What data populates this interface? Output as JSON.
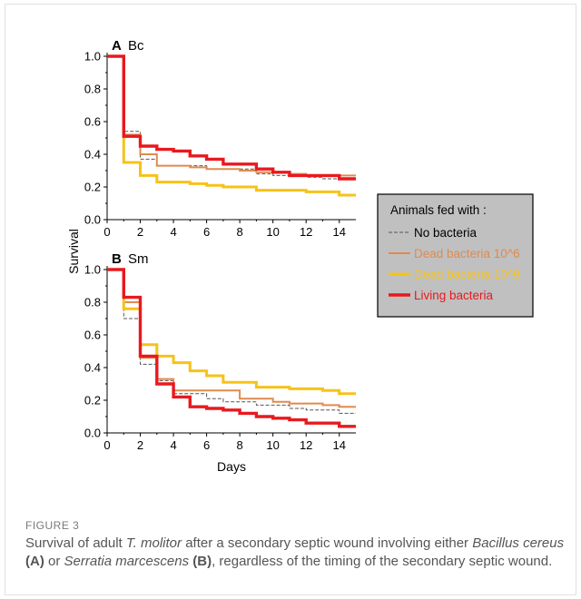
{
  "figure": {
    "label": "FIGURE 3",
    "caption": {
      "t1": "Survival of adult ",
      "species": "T. molitor",
      "t2": " after a secondary septic wound involving either ",
      "bacterium_a": "Bacillus cereus",
      "panel_a_ref": "(A)",
      "t3": " or ",
      "bacterium_b": "Serratia marcescens",
      "panel_b_ref": "(B)",
      "t4": ", regardless of the timing of the secondary septic wound."
    }
  },
  "colors": {
    "no_bacteria": "#555555",
    "dead_10_6": "#e08a4e",
    "dead_10_9": "#f7c218",
    "living": "#e8191e",
    "legend_bg": "#c0c0c0"
  },
  "chart_data": {
    "type": "line",
    "step": true,
    "ylabel": "Survival",
    "xlabel": "Days",
    "legend": {
      "title": "Animals fed with :",
      "placement": "right"
    },
    "xlim": [
      0,
      15
    ],
    "ylim": [
      0,
      1
    ],
    "xticks": [
      0,
      2,
      4,
      6,
      8,
      10,
      12,
      14
    ],
    "yticks": [
      0.0,
      0.2,
      0.4,
      0.6,
      0.8,
      1.0
    ],
    "ytick_labels": [
      "0.0",
      "0.2",
      "0.4",
      "0.6",
      "0.8",
      "1.0"
    ],
    "panels": [
      {
        "letter": "A",
        "title": "Bc",
        "series": [
          {
            "name": "No bacteria",
            "key": "no_bacteria",
            "x": [
              0,
              1,
              2,
              3,
              5,
              6,
              8,
              9,
              10,
              11,
              12,
              13,
              14,
              15
            ],
            "y": [
              1.0,
              0.54,
              0.37,
              0.33,
              0.33,
              0.31,
              0.31,
              0.28,
              0.27,
              0.27,
              0.26,
              0.25,
              0.25,
              0.25
            ]
          },
          {
            "name": "Dead bacteria 10^6",
            "key": "dead_10_6",
            "x": [
              0,
              1,
              2,
              3,
              5,
              6,
              8,
              9,
              11,
              12,
              13,
              15
            ],
            "y": [
              1.0,
              0.52,
              0.4,
              0.33,
              0.32,
              0.31,
              0.3,
              0.29,
              0.28,
              0.27,
              0.27,
              0.27
            ]
          },
          {
            "name": "Dead bacteria 10^9",
            "key": "dead_10_9",
            "x": [
              0,
              1,
              2,
              3,
              5,
              6,
              7,
              9,
              12,
              14,
              15
            ],
            "y": [
              1.0,
              0.35,
              0.27,
              0.23,
              0.22,
              0.21,
              0.2,
              0.18,
              0.17,
              0.15,
              0.15
            ]
          },
          {
            "name": "Living bacteria",
            "key": "living",
            "x": [
              0,
              1,
              2,
              3,
              4,
              5,
              6,
              7,
              9,
              10,
              11,
              14,
              15
            ],
            "y": [
              1.0,
              0.51,
              0.45,
              0.43,
              0.42,
              0.39,
              0.37,
              0.34,
              0.31,
              0.29,
              0.27,
              0.25,
              0.25
            ]
          }
        ]
      },
      {
        "letter": "B",
        "title": "Sm",
        "series": [
          {
            "name": "No bacteria",
            "key": "no_bacteria",
            "x": [
              0,
              1,
              2,
              3,
              4,
              6,
              7,
              9,
              11,
              12,
              14,
              15
            ],
            "y": [
              1.0,
              0.7,
              0.42,
              0.32,
              0.24,
              0.21,
              0.19,
              0.17,
              0.15,
              0.14,
              0.12,
              0.12
            ]
          },
          {
            "name": "Dead bacteria 10^6",
            "key": "dead_10_6",
            "x": [
              0,
              1,
              2,
              3,
              4,
              6,
              8,
              10,
              11,
              13,
              14,
              15
            ],
            "y": [
              1.0,
              0.8,
              0.46,
              0.33,
              0.26,
              0.26,
              0.21,
              0.19,
              0.18,
              0.17,
              0.16,
              0.16
            ]
          },
          {
            "name": "Dead bacteria 10^9",
            "key": "dead_10_9",
            "x": [
              0,
              1,
              2,
              3,
              4,
              5,
              6,
              7,
              9,
              11,
              13,
              14,
              15
            ],
            "y": [
              1.0,
              0.76,
              0.54,
              0.47,
              0.43,
              0.38,
              0.35,
              0.31,
              0.28,
              0.27,
              0.26,
              0.24,
              0.24
            ]
          },
          {
            "name": "Living bacteria",
            "key": "living",
            "x": [
              0,
              1,
              2,
              3,
              4,
              5,
              6,
              7,
              8,
              9,
              10,
              11,
              12,
              14,
              15
            ],
            "y": [
              1.0,
              0.83,
              0.47,
              0.3,
              0.22,
              0.16,
              0.15,
              0.14,
              0.12,
              0.1,
              0.09,
              0.08,
              0.06,
              0.04,
              0.04
            ]
          }
        ]
      }
    ]
  }
}
